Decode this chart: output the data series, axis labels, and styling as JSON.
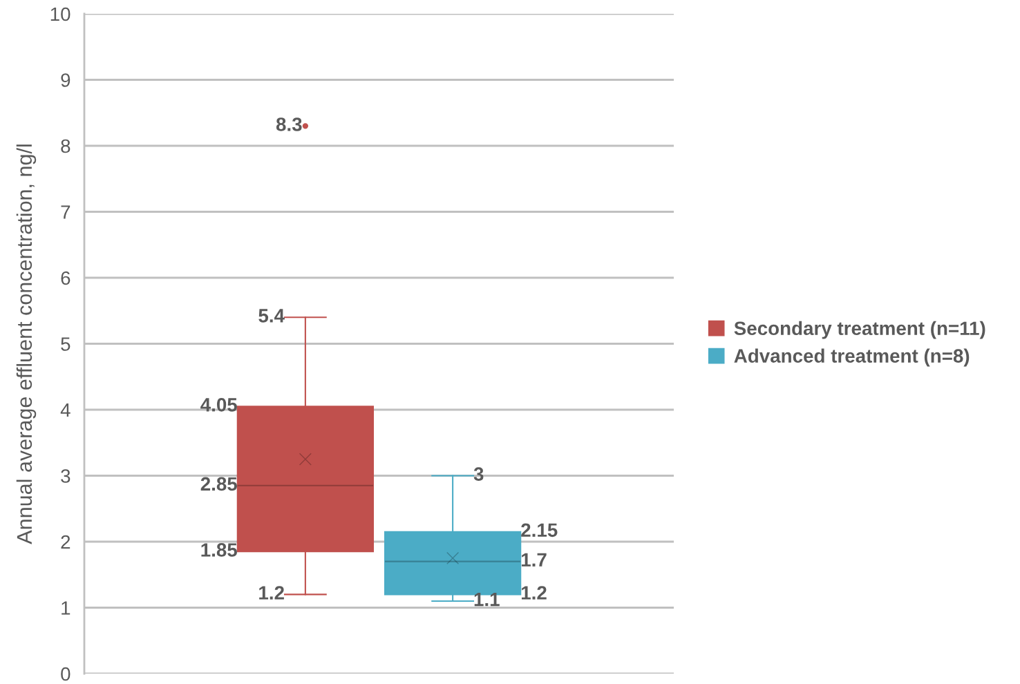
{
  "chart_data": {
    "type": "box",
    "ylabel": "Annual average effluent concentration, ng/l",
    "categories": [
      null
    ],
    "series": [
      {
        "name": "Secondary treatment (n=11)",
        "color": "#c0504d",
        "boxes": [
          {
            "low": 1.2,
            "q1": 1.85,
            "median": 2.85,
            "q3": 4.05,
            "high": 5.4,
            "mean": 3.25,
            "outliers": [
              8.3
            ]
          }
        ]
      },
      {
        "name": "Advanced treatment (n=8)",
        "color": "#4bacc6",
        "boxes": [
          {
            "low": 1.1,
            "q1": 1.2,
            "median": 1.7,
            "q3": 2.15,
            "high": 3,
            "mean": 1.75
          }
        ]
      }
    ],
    "ylim": [
      0,
      10
    ],
    "yticks": [
      0,
      1,
      2,
      3,
      4,
      5,
      6,
      7,
      8,
      9,
      10
    ],
    "grid": "y",
    "legend": "right",
    "data_labels": true,
    "annotations": [
      "1.2",
      "1.85",
      "2.85",
      "4.05",
      "5.4",
      "8.3",
      "1.1",
      "1.2",
      "1.7",
      "2.15",
      "3"
    ]
  }
}
